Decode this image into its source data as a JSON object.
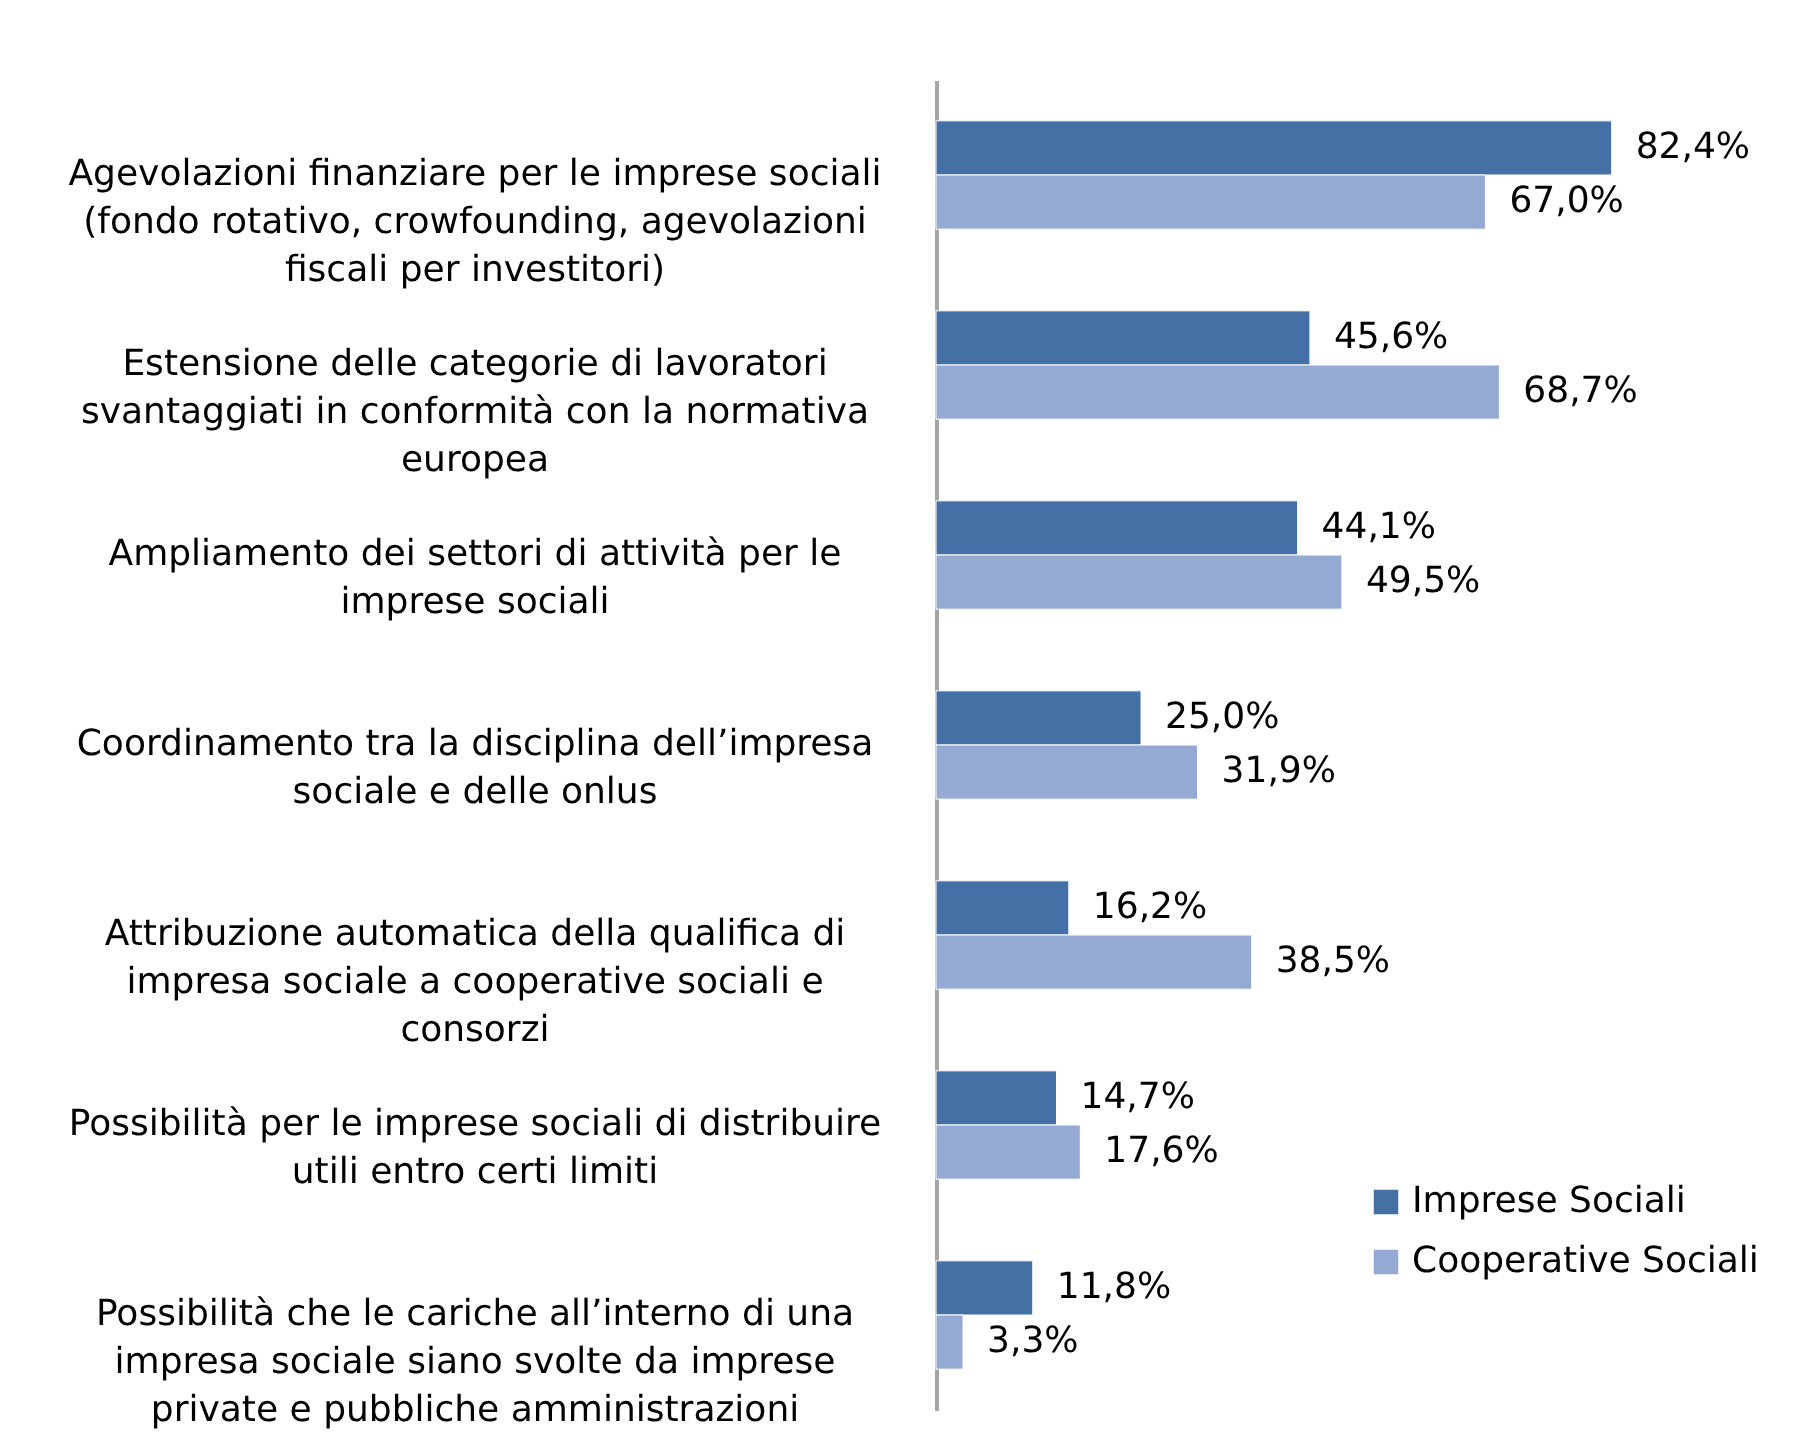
{
  "chart_data": {
    "type": "bar",
    "orientation": "horizontal",
    "categories": [
      "Agevolazioni finanziare per le imprese sociali\n(fondo rotativo, crowfounding, agevolazioni\nfiscali per investitori)",
      "Estensione delle categorie di lavoratori\nsvantaggiati in conformità con la normativa\neuropea",
      "Ampliamento dei settori di attività per le\nimprese sociali",
      "Coordinamento tra la disciplina dell’impresa\nsociale e delle onlus",
      "Attribuzione automatica della qualifica di\nimpresa sociale a cooperative sociali e\nconsorzi",
      "Possibilità per le imprese sociali di distribuire\nutili entro certi limiti",
      "Possibilità che le cariche all’interno di una\nimpresa sociale siano svolte da imprese\nprivate e pubbliche amministrazioni"
    ],
    "series": [
      {
        "name": "Imprese Sociali",
        "color": "#4470a6",
        "values": [
          82.4,
          45.6,
          44.1,
          25.0,
          16.2,
          14.7,
          11.8
        ],
        "value_labels": [
          "82,4%",
          "45,6%",
          "44,1%",
          "25,0%",
          "16,2%",
          "14,7%",
          "11,8%"
        ]
      },
      {
        "name": "Cooperative Sociali",
        "color": "#95aad3",
        "values": [
          67.0,
          68.7,
          49.5,
          31.9,
          38.5,
          17.6,
          3.3
        ],
        "value_labels": [
          "67,0%",
          "68,7%",
          "49,5%",
          "31,9%",
          "38,5%",
          "17,6%",
          "3,3%"
        ]
      }
    ],
    "legend": "bottom right",
    "tick_labels": "y"
  }
}
